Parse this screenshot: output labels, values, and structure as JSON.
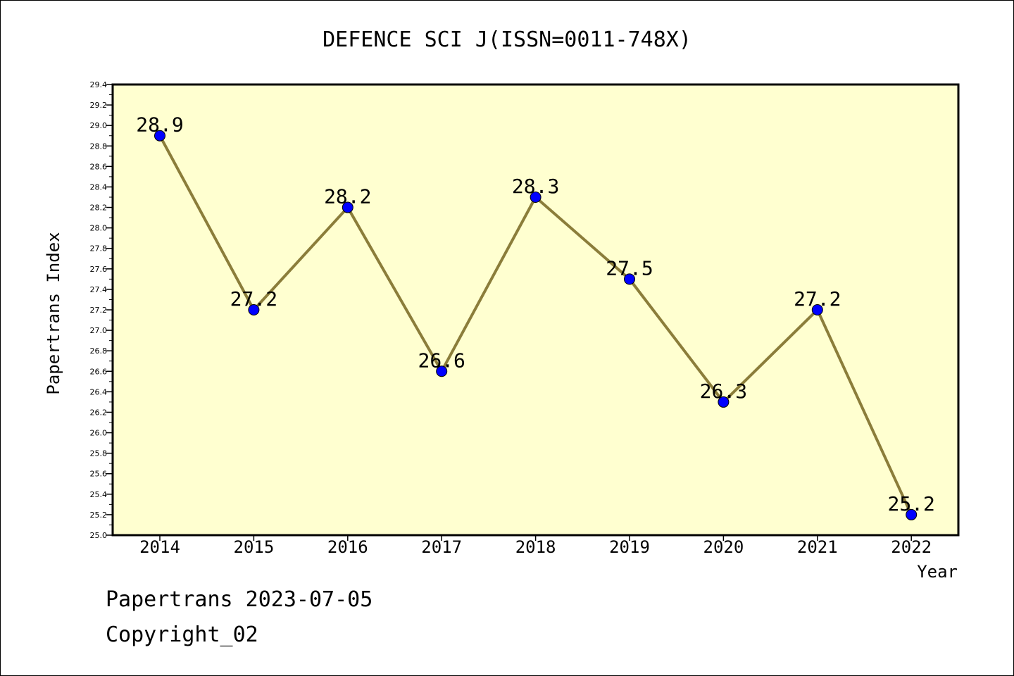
{
  "chart_data": {
    "type": "line",
    "title": "DEFENCE SCI J(ISSN=0011-748X)",
    "xlabel": "Year",
    "ylabel": "Papertrans Index",
    "x": [
      "2014",
      "2015",
      "2016",
      "2017",
      "2018",
      "2019",
      "2020",
      "2021",
      "2022"
    ],
    "values": [
      28.9,
      27.2,
      28.2,
      26.6,
      28.3,
      27.5,
      26.3,
      27.2,
      25.2
    ],
    "value_labels": [
      "28.9",
      "27.2",
      "28.2",
      "26.6",
      "28.3",
      "27.5",
      "26.3",
      "27.2",
      "25.2"
    ],
    "ylim": [
      25.0,
      29.4
    ],
    "yticks": [
      "25.0",
      "25.2",
      "25.4",
      "25.6",
      "25.8",
      "26.0",
      "26.2",
      "26.4",
      "26.6",
      "26.8",
      "27.0",
      "27.2",
      "27.4",
      "27.6",
      "27.8",
      "28.0",
      "28.2",
      "28.4",
      "28.6",
      "28.8",
      "29.0",
      "29.2",
      "29.4"
    ],
    "grid": false,
    "legend": "none",
    "colors": {
      "plot_background": "#ffffd0",
      "line": "#8b7d3a",
      "marker": "#0000ff"
    }
  },
  "footer": {
    "line1": "Papertrans 2023-07-05",
    "line2": "Copyright_02"
  }
}
